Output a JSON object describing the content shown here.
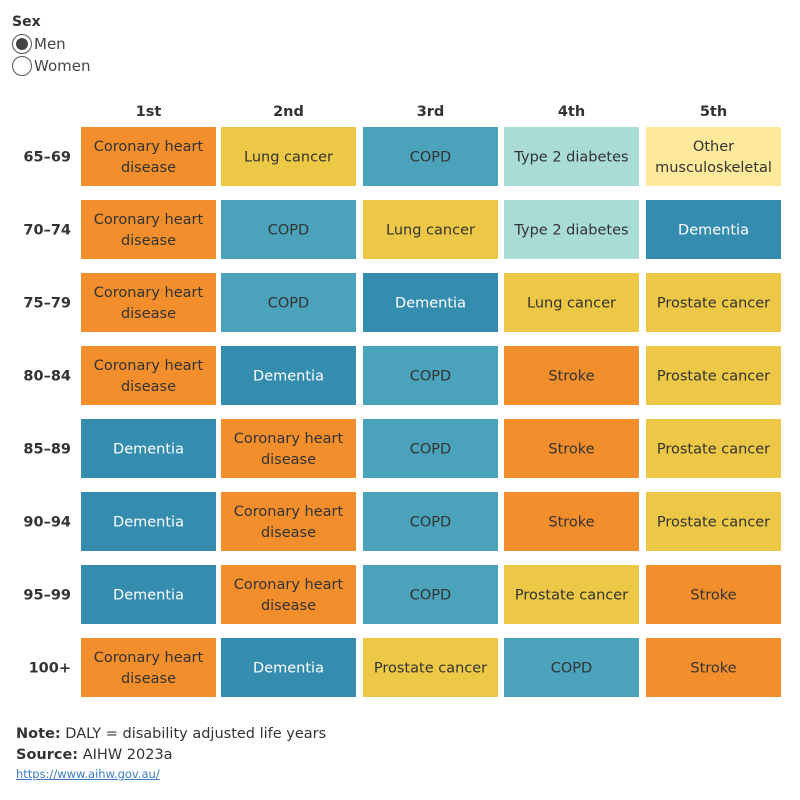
{
  "filter": {
    "title": "Sex",
    "options": [
      {
        "label": "Men",
        "selected": true
      },
      {
        "label": "Women",
        "selected": false
      }
    ]
  },
  "colors": {
    "Coronary heart disease": "#F28E2B",
    "Stroke": "#F28E2B",
    "Lung cancer": "#ECC846",
    "Prostate cancer": "#ECC846",
    "COPD": "#4AA3BB",
    "Dementia": "#348CAE",
    "Type 2 diabetes": "#A9DCD6",
    "Other musculoskeletal": "#FFE99A"
  },
  "chart_data": {
    "type": "table",
    "columns": [
      "1st",
      "2nd",
      "3rd",
      "4th",
      "5th"
    ],
    "rows": [
      {
        "age": "65–69",
        "cells": [
          "Coronary heart disease",
          "Lung cancer",
          "COPD",
          "Type 2 diabetes",
          "Other musculoskeletal"
        ]
      },
      {
        "age": "70–74",
        "cells": [
          "Coronary heart disease",
          "COPD",
          "Lung cancer",
          "Type 2 diabetes",
          "Dementia"
        ]
      },
      {
        "age": "75–79",
        "cells": [
          "Coronary heart disease",
          "COPD",
          "Dementia",
          "Lung cancer",
          "Prostate cancer"
        ]
      },
      {
        "age": "80–84",
        "cells": [
          "Coronary heart disease",
          "Dementia",
          "COPD",
          "Stroke",
          "Prostate cancer"
        ]
      },
      {
        "age": "85–89",
        "cells": [
          "Dementia",
          "Coronary heart disease",
          "COPD",
          "Stroke",
          "Prostate cancer"
        ]
      },
      {
        "age": "90–94",
        "cells": [
          "Dementia",
          "Coronary heart disease",
          "COPD",
          "Stroke",
          "Prostate cancer"
        ]
      },
      {
        "age": "95–99",
        "cells": [
          "Dementia",
          "Coronary heart disease",
          "COPD",
          "Prostate cancer",
          "Stroke"
        ]
      },
      {
        "age": "100+",
        "cells": [
          "Coronary heart disease",
          "Dementia",
          "Prostate cancer",
          "COPD",
          "Stroke"
        ]
      }
    ]
  },
  "note": {
    "label": "Note:",
    "text": " DALY = disability adjusted life years"
  },
  "source": {
    "label": "Source:",
    "text": " AIHW 2023a"
  },
  "link": "https://www.aihw.gov.au/"
}
